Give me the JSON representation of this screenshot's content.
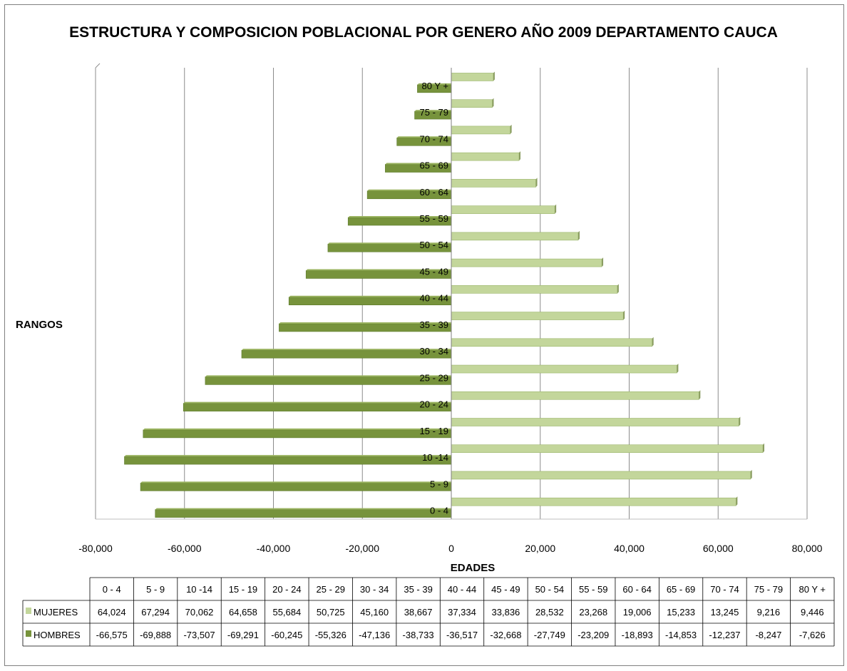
{
  "chart_data": {
    "type": "bar",
    "orientation": "horizontal",
    "title": "ESTRUCTURA Y COMPOSICION POBLACIONAL POR GENERO AÑO 2009 DEPARTAMENTO CAUCA",
    "xlabel": "EDADES",
    "ylabel": "RANGOS",
    "xlim": [
      -80000,
      80000
    ],
    "x_ticks": [
      "-80,000",
      "-60,000",
      "-40,000",
      "-20,000",
      "0",
      "20,000",
      "40,000",
      "60,000",
      "80,000"
    ],
    "x_tick_values": [
      -80000,
      -60000,
      -40000,
      -20000,
      0,
      20000,
      40000,
      60000,
      80000
    ],
    "grid": true,
    "legend": "data-table",
    "categories": [
      "0 - 4",
      "5 - 9",
      "10 -14",
      "15 - 19",
      "20 - 24",
      "25 - 29",
      "30 - 34",
      "35 - 39",
      "40 - 44",
      "45 - 49",
      "50 - 54",
      "55 - 59",
      "60 - 64",
      "65 - 69",
      "70 - 74",
      "75 - 79",
      "80 Y +"
    ],
    "series": [
      {
        "name": "MUJERES",
        "color": "#c3d69b",
        "values": [
          64024,
          67294,
          70062,
          64658,
          55684,
          50725,
          45160,
          38667,
          37334,
          33836,
          28532,
          23268,
          19006,
          15233,
          13245,
          9216,
          9446
        ],
        "labels": [
          "64,024",
          "67,294",
          "70,062",
          "64,658",
          "55,684",
          "50,725",
          "45,160",
          "38,667",
          "37,334",
          "33,836",
          "28,532",
          "23,268",
          "19,006",
          "15,233",
          "13,245",
          "9,216",
          "9,446"
        ]
      },
      {
        "name": "HOMBRES",
        "color": "#77933c",
        "values": [
          -66575,
          -69888,
          -73507,
          -69291,
          -60245,
          -55326,
          -47136,
          -38733,
          -36517,
          -32668,
          -27749,
          -23209,
          -18893,
          -14853,
          -12237,
          -8247,
          -7626
        ],
        "labels": [
          "-66,575",
          "-69,888",
          "-73,507",
          "-69,291",
          "-60,245",
          "-55,326",
          "-47,136",
          "-38,733",
          "-36,517",
          "-32,668",
          "-27,749",
          "-23,209",
          "-18,893",
          "-14,853",
          "-12,237",
          "-8,247",
          "-7,626"
        ]
      }
    ]
  }
}
